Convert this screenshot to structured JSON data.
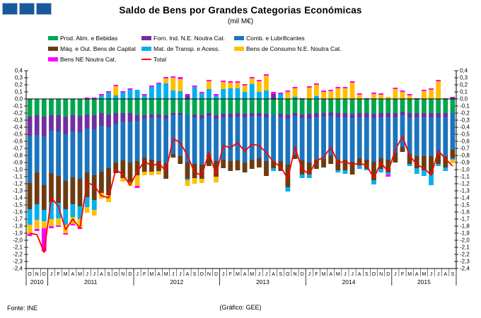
{
  "page": {
    "fonte": "Fonte: INE",
    "credit": "(Gráfico: GEE)"
  },
  "chart_data": {
    "type": "bar",
    "stacked": true,
    "overlay_line": "Total",
    "title": "Saldo de Bens por Grandes Categorias Económicas",
    "subtitle": "(mil M€)",
    "xlabel": "",
    "ylabel": "",
    "ylim": [
      -2.4,
      0.4
    ],
    "ytick_step": 0.1,
    "grid": false,
    "legend_position": "top",
    "axis_color": "#000000",
    "total_line_color": "#FF0000",
    "years": [
      {
        "label": "2010",
        "months": [
          "O",
          "N",
          "D"
        ]
      },
      {
        "label": "2011",
        "months": [
          "J",
          "F",
          "M",
          "A",
          "M",
          "J",
          "J",
          "A",
          "S",
          "O",
          "N",
          "D"
        ]
      },
      {
        "label": "2012",
        "months": [
          "J",
          "F",
          "M",
          "A",
          "M",
          "J",
          "J",
          "A",
          "S",
          "O",
          "N",
          "D"
        ]
      },
      {
        "label": "2013",
        "months": [
          "J",
          "F",
          "M",
          "A",
          "M",
          "J",
          "J",
          "A",
          "S",
          "O",
          "N",
          "D"
        ]
      },
      {
        "label": "2014",
        "months": [
          "J",
          "F",
          "M",
          "A",
          "M",
          "J",
          "J",
          "A",
          "S",
          "O",
          "N",
          "D"
        ]
      },
      {
        "label": "2015",
        "months": [
          "J",
          "F",
          "M",
          "A",
          "M",
          "J",
          "J",
          "A",
          "S"
        ]
      }
    ],
    "series": [
      {
        "name": "Prod. Alim. e Bebidas",
        "color": "#00A64F",
        "values": [
          -0.25,
          -0.23,
          -0.25,
          -0.23,
          -0.23,
          -0.25,
          -0.23,
          -0.24,
          -0.22,
          -0.23,
          -0.2,
          -0.22,
          -0.2,
          -0.2,
          -0.2,
          -0.23,
          -0.23,
          -0.22,
          -0.22,
          -0.23,
          -0.2,
          -0.2,
          -0.22,
          -0.22,
          -0.23,
          -0.2,
          -0.23,
          -0.21,
          -0.21,
          -0.2,
          -0.21,
          -0.2,
          -0.2,
          -0.21,
          -0.22,
          -0.21,
          -0.22,
          -0.2,
          -0.22,
          -0.21,
          -0.2,
          -0.2,
          -0.19,
          -0.2,
          -0.2,
          -0.21,
          -0.2,
          -0.2,
          -0.21,
          -0.2,
          -0.2,
          -0.2,
          -0.18,
          -0.2,
          -0.2,
          -0.2,
          -0.2,
          -0.2,
          -0.2,
          -0.2
        ]
      },
      {
        "name": "Forn. Ind. N.E. Noutra Cat.",
        "color": "#7030A0",
        "values": [
          -0.27,
          -0.28,
          -0.28,
          -0.22,
          -0.23,
          -0.25,
          -0.23,
          -0.23,
          -0.2,
          -0.2,
          -0.18,
          -0.18,
          -0.15,
          -0.12,
          -0.12,
          -0.08,
          -0.05,
          -0.04,
          -0.04,
          -0.05,
          -0.03,
          -0.03,
          0.05,
          -0.04,
          -0.05,
          -0.04,
          -0.05,
          -0.05,
          -0.05,
          -0.05,
          -0.05,
          -0.04,
          -0.04,
          -0.05,
          0.07,
          -0.05,
          -0.06,
          -0.04,
          -0.05,
          -0.07,
          -0.06,
          -0.05,
          -0.05,
          -0.06,
          -0.06,
          -0.06,
          -0.06,
          -0.06,
          -0.06,
          -0.06,
          -0.06,
          -0.06,
          -0.05,
          -0.06,
          -0.06,
          -0.06,
          -0.06,
          -0.06,
          -0.06,
          0.02
        ]
      },
      {
        "name": "Comb. e Lubrificantes",
        "color": "#1B74BD",
        "values": [
          -0.67,
          -0.53,
          -0.69,
          -0.6,
          -0.63,
          -0.66,
          -0.65,
          -0.66,
          -0.62,
          -0.65,
          -0.65,
          -0.58,
          -0.55,
          -0.55,
          -0.58,
          -0.57,
          -0.55,
          -0.6,
          -0.62,
          -0.63,
          -0.55,
          -0.58,
          -0.68,
          -0.66,
          -0.65,
          -0.55,
          -0.6,
          -0.6,
          -0.62,
          -0.62,
          -0.64,
          -0.62,
          -0.6,
          -0.62,
          -0.66,
          -0.62,
          -0.65,
          -0.55,
          -0.6,
          -0.62,
          -0.6,
          -0.6,
          -0.56,
          -0.6,
          -0.6,
          -0.62,
          -0.58,
          -0.6,
          -0.62,
          -0.58,
          -0.6,
          -0.5,
          -0.45,
          -0.52,
          -0.55,
          -0.55,
          -0.55,
          -0.52,
          -0.55,
          -0.52
        ]
      },
      {
        "name": "Máq. e Out. Bens de Capital",
        "color": "#6E3B10",
        "values": [
          -0.37,
          -0.45,
          -0.35,
          -0.41,
          -0.38,
          -0.4,
          -0.38,
          -0.39,
          -0.35,
          -0.35,
          -0.3,
          -0.38,
          -0.15,
          -0.25,
          -0.28,
          -0.2,
          -0.2,
          -0.17,
          -0.14,
          -0.22,
          -0.05,
          -0.11,
          -0.23,
          -0.2,
          -0.2,
          -0.16,
          -0.22,
          -0.12,
          -0.14,
          -0.14,
          -0.14,
          -0.13,
          -0.13,
          -0.21,
          -0.1,
          -0.14,
          -0.32,
          -0.06,
          -0.2,
          -0.17,
          -0.13,
          -0.12,
          -0.12,
          -0.15,
          -0.15,
          -0.18,
          -0.1,
          -0.13,
          -0.26,
          -0.15,
          -0.18,
          -0.14,
          -0.07,
          -0.14,
          -0.17,
          -0.2,
          -0.25,
          -0.14,
          -0.16,
          -0.12
        ]
      },
      {
        "name": "Mat. de Transp. e Acess.",
        "color": "#00B0F0",
        "values": [
          -0.22,
          -0.22,
          -0.16,
          -0.24,
          -0.22,
          -0.22,
          -0.18,
          -0.18,
          -0.14,
          -0.14,
          0.05,
          0.09,
          0.05,
          0.09,
          0.13,
          0.13,
          0.05,
          0.17,
          0.21,
          0.22,
          0.12,
          0.11,
          -0.02,
          0.17,
          0.08,
          0.14,
          0.05,
          0.14,
          0.15,
          0.15,
          0.1,
          0.21,
          0.1,
          0.12,
          -0.04,
          0.07,
          -0.06,
          0.03,
          -0.05,
          -0.05,
          0.04,
          0.0,
          0.0,
          -0.03,
          -0.05,
          0.0,
          -0.05,
          -0.02,
          -0.06,
          -0.05,
          -0.03,
          0.0,
          0.0,
          -0.03,
          -0.08,
          -0.08,
          -0.16,
          -0.03,
          -0.05,
          -0.02
        ]
      },
      {
        "name": "Bens de Consumo N.E. Noutra Cat.",
        "color": "#FFC000",
        "values": [
          -0.13,
          -0.13,
          -0.1,
          -0.1,
          -0.1,
          -0.12,
          -0.1,
          -0.12,
          -0.08,
          -0.08,
          -0.08,
          -0.1,
          0.13,
          -0.05,
          -0.05,
          -0.15,
          -0.05,
          -0.05,
          -0.05,
          0.07,
          0.18,
          0.17,
          -0.08,
          -0.08,
          -0.06,
          0.11,
          -0.08,
          0.1,
          0.08,
          0.08,
          0.09,
          0.08,
          0.15,
          0.21,
          0.0,
          0.0,
          0.1,
          0.12,
          0.0,
          0.16,
          0.16,
          0.1,
          0.11,
          0.15,
          0.15,
          0.23,
          0.06,
          0.0,
          0.07,
          0.06,
          0.03,
          0.14,
          0.1,
          0.05,
          0.0,
          0.11,
          0.13,
          0.25,
          0.0,
          -0.05
        ]
      },
      {
        "name": "Bens NE Noutra Cat.",
        "color": "#FF00FF",
        "values": [
          -0.03,
          -0.03,
          -0.33,
          -0.03,
          -0.02,
          -0.02,
          -0.02,
          -0.02,
          0.02,
          0.02,
          0.02,
          0.02,
          0.02,
          0.02,
          0.02,
          -0.03,
          0.02,
          0.02,
          0.02,
          0.02,
          0.02,
          0.03,
          0.02,
          0.02,
          0.02,
          0.02,
          0.02,
          0.02,
          0.02,
          0.02,
          0.02,
          0.02,
          0.02,
          0.02,
          0.03,
          0.02,
          0.02,
          0.02,
          0.01,
          0.02,
          0.02,
          0.02,
          0.02,
          0.02,
          0.02,
          0.02,
          0.02,
          0.01,
          0.02,
          0.02,
          -0.03,
          0.02,
          0.02,
          0.02,
          0.01,
          0.02,
          0.02,
          0.02,
          0.01,
          0.01
        ]
      }
    ],
    "total": {
      "name": "Total",
      "color": "#FF0000",
      "values": [
        -1.9,
        -1.92,
        -2.17,
        -1.4,
        -1.52,
        -1.85,
        -1.7,
        -1.83,
        -1.18,
        -1.23,
        -1.37,
        -1.4,
        -1.0,
        -1.07,
        -1.22,
        -1.03,
        -0.88,
        -0.95,
        -0.91,
        -1.02,
        -0.56,
        -0.62,
        -0.8,
        -1.04,
        -1.08,
        -0.76,
        -1.07,
        -0.66,
        -0.69,
        -0.62,
        -0.74,
        -0.64,
        -0.66,
        -0.76,
        -0.89,
        -0.96,
        -1.13,
        -0.68,
        -1.0,
        -1.06,
        -0.87,
        -0.83,
        -0.68,
        -0.9,
        -0.89,
        -0.93,
        -0.91,
        -0.94,
        -1.12,
        -0.9,
        -1.03,
        -0.72,
        -0.53,
        -0.8,
        -0.93,
        -0.98,
        -1.08,
        -0.73,
        -0.85,
        -0.95
      ]
    }
  }
}
